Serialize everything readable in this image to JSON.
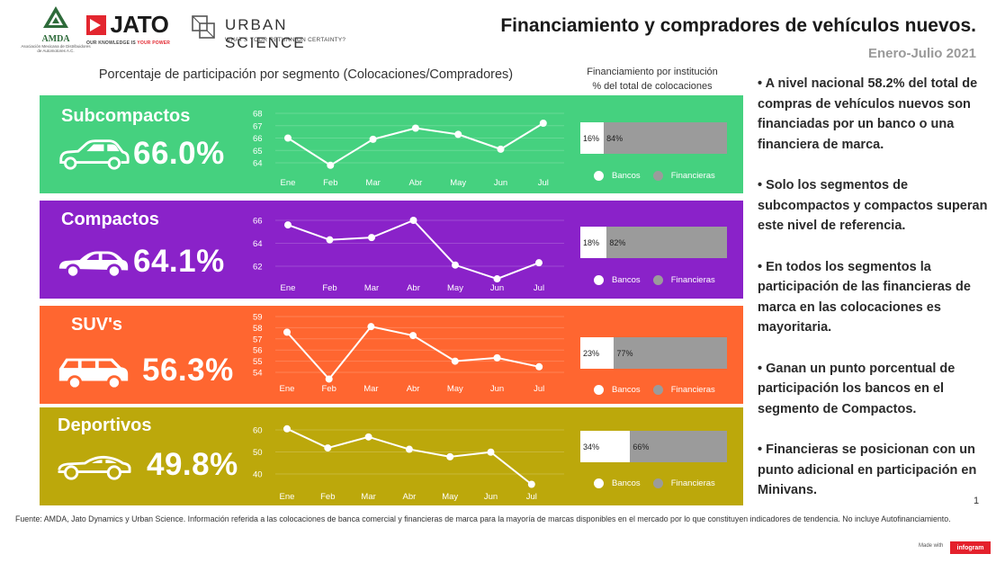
{
  "logos": {
    "amda": {
      "word": "AMDA",
      "sub": "Asociación Mexicana de Distribuidores de Automotores A.C."
    },
    "jato": {
      "word": "JATO",
      "tagline_a": "OUR KNOWLEDGE IS ",
      "tagline_b": "YOUR POWER"
    },
    "urban_science": {
      "word": "URBAN SCIENCE",
      "tagline": "WHAT'S YOUR RETURN ON CERTAINTY?"
    }
  },
  "header": {
    "title": "Financiamiento y compradores de vehículos nuevos.",
    "period": "Enero-Julio  2021",
    "segments_title": "Porcentaje de participación por segmento (Colocaciones/Compradores)",
    "financing_title_line1": "Financiamiento por institución",
    "financing_title_line2": "% del total de colocaciones"
  },
  "legend": {
    "banks": "Bancos",
    "financieras": "Financieras"
  },
  "colors": {
    "subcompactos": "#45d17f",
    "compactos": "#8a22c9",
    "suvs": "#ff6630",
    "deportivos": "#bca80b",
    "bank": "#ffffff",
    "financieras": "#9b9b9b"
  },
  "chart_data": [
    {
      "type": "line",
      "segment": "Subcompactos",
      "total": "66.0%",
      "categories": [
        "Ene",
        "Feb",
        "Mar",
        "Abr",
        "May",
        "Jun",
        "Jul"
      ],
      "values": [
        66.0,
        63.8,
        65.9,
        66.8,
        66.3,
        65.1,
        67.2
      ],
      "yticks": [
        64,
        65,
        66,
        67,
        68
      ],
      "ylim": [
        63.5,
        68.3
      ],
      "financing": {
        "banks": "16%",
        "financieras": "84%",
        "banks_value": 16,
        "financieras_value": 84
      }
    },
    {
      "type": "line",
      "segment": "Compactos",
      "total": "64.1%",
      "categories": [
        "Ene",
        "Feb",
        "Mar",
        "Abr",
        "May",
        "Jun",
        "Jul"
      ],
      "values": [
        65.6,
        64.3,
        64.5,
        66.0,
        62.1,
        60.9,
        62.3
      ],
      "yticks": [
        62,
        64,
        66
      ],
      "ylim": [
        60.6,
        66.8
      ],
      "financing": {
        "banks": "18%",
        "financieras": "82%",
        "banks_value": 18,
        "financieras_value": 82
      }
    },
    {
      "type": "line",
      "segment": "SUV's",
      "total": "56.3%",
      "categories": [
        "Ene",
        "Feb",
        "Mar",
        "Abr",
        "May",
        "Jun",
        "Jul"
      ],
      "values": [
        57.6,
        53.4,
        58.1,
        57.3,
        55.0,
        55.3,
        54.5
      ],
      "yticks": [
        54,
        55,
        56,
        57,
        58,
        59
      ],
      "ylim": [
        53.0,
        59.2
      ],
      "financing": {
        "banks": "23%",
        "financieras": "77%",
        "banks_value": 23,
        "financieras_value": 77
      }
    },
    {
      "type": "line",
      "segment": "Deportivos",
      "total": "49.8%",
      "categories": [
        "Ene",
        "Feb",
        "Mar",
        "Abr",
        "May",
        "Jun",
        "Jul"
      ],
      "values": [
        60.5,
        51.8,
        56.8,
        51.2,
        47.8,
        49.9,
        35.3
      ],
      "yticks": [
        40,
        50,
        60
      ],
      "ylim": [
        34.0,
        63.5
      ],
      "financing": {
        "banks": "34%",
        "financieras": "66%",
        "banks_value": 34,
        "financieras_value": 66
      }
    }
  ],
  "notes": [
    "• A nivel nacional 58.2% del total de compras de vehículos nuevos son financiadas por un banco o una financiera de marca.",
    "• Solo los segmentos de subcompactos y compactos superan este nivel de referencia.",
    "• En todos los segmentos la participación de las financieras de marca en las colocaciones es mayoritaria.",
    "• Ganan un punto porcentual de participación los bancos en el segmento de Compactos.",
    "• Financieras se posicionan con un punto adicional en participación en Minivans."
  ],
  "page_number": "1",
  "footer": "Fuente: AMDA, Jato Dynamics y Urban Science. Información referida a las colocaciones de banca comercial y financieras de marca para la mayoría de marcas disponibles en el mercado por lo que constituyen indicadores de tendencia. No incluye Autofinanciamiento.",
  "made_with": "Made with",
  "infogram": "infogram"
}
